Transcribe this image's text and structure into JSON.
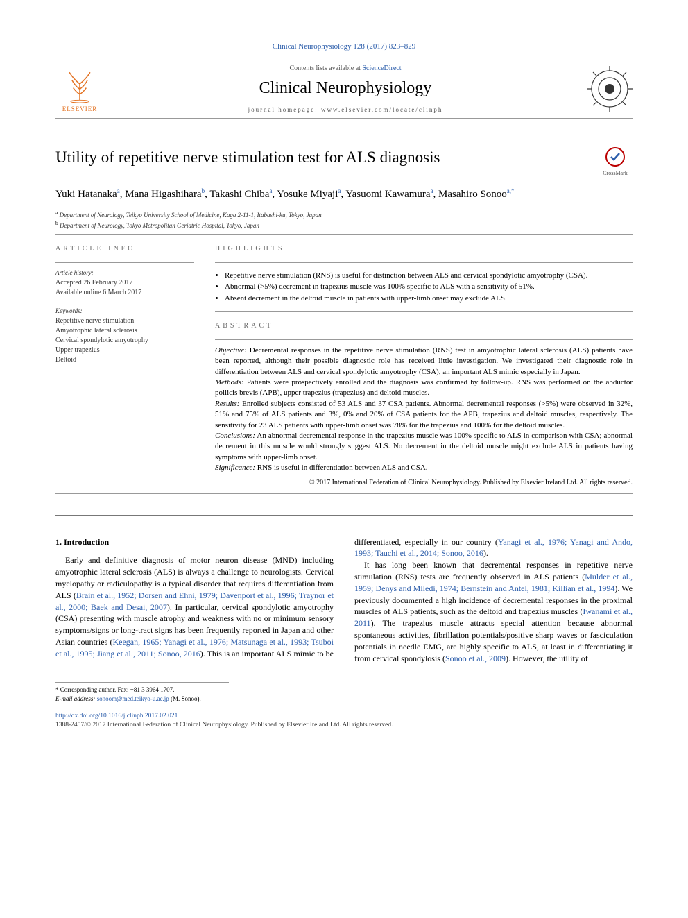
{
  "journal_ref": "Clinical Neurophysiology 128 (2017) 823–829",
  "masthead": {
    "contents_prefix": "Contents lists available at ",
    "contents_link": "ScienceDirect",
    "journal_name": "Clinical Neurophysiology",
    "homepage_prefix": "journal homepage: ",
    "homepage_url": "www.elsevier.com/locate/clinph",
    "publisher_word": "ELSEVIER"
  },
  "title": "Utility of repetitive nerve stimulation test for ALS diagnosis",
  "crossmark_label": "CrossMark",
  "authors_html": "Yuki Hatanaka<sup>a</sup>, Mana Higashihara<sup>b</sup>, Takashi Chiba<sup>a</sup>, Yosuke Miyaji<sup>a</sup>, Yasuomi Kawamura<sup>a</sup>, Masahiro Sonoo<sup>a,</sup>",
  "corr_symbol": "*",
  "affiliations": [
    "Department of Neurology, Teikyo University School of Medicine, Kaga 2-11-1, Itabashi-ku, Tokyo, Japan",
    "Department of Neurology, Tokyo Metropolitan Geriatric Hospital, Tokyo, Japan"
  ],
  "aff_marks": [
    "a",
    "b"
  ],
  "info": {
    "label": "article info",
    "history_label": "Article history:",
    "accepted": "Accepted 26 February 2017",
    "online": "Available online 6 March 2017",
    "keywords_label": "Keywords:",
    "keywords": [
      "Repetitive nerve stimulation",
      "Amyotrophic lateral sclerosis",
      "Cervical spondylotic amyotrophy",
      "Upper trapezius",
      "Deltoid"
    ]
  },
  "highlights": {
    "label": "highlights",
    "items": [
      "Repetitive nerve stimulation (RNS) is useful for distinction between ALS and cervical spondylotic amyotrophy (CSA).",
      "Abnormal (>5%) decrement in trapezius muscle was 100% specific to ALS with a sensitivity of 51%.",
      "Absent decrement in the deltoid muscle in patients with upper-limb onset may exclude ALS."
    ]
  },
  "abstract": {
    "label": "abstract",
    "objective_lbl": "Objective:",
    "objective": " Decremental responses in the repetitive nerve stimulation (RNS) test in amyotrophic lateral sclerosis (ALS) patients have been reported, although their possible diagnostic role has received little investigation. We investigated their diagnostic role in differentiation between ALS and cervical spondylotic amyotrophy (CSA), an important ALS mimic especially in Japan.",
    "methods_lbl": "Methods:",
    "methods": " Patients were prospectively enrolled and the diagnosis was confirmed by follow-up. RNS was performed on the abductor pollicis brevis (APB), upper trapezius (trapezius) and deltoid muscles.",
    "results_lbl": "Results:",
    "results": " Enrolled subjects consisted of 53 ALS and 37 CSA patients. Abnormal decremental responses (>5%) were observed in 32%, 51% and 75% of ALS patients and 3%, 0% and 20% of CSA patients for the APB, trapezius and deltoid muscles, respectively. The sensitivity for 23 ALS patients with upper-limb onset was 78% for the trapezius and 100% for the deltoid muscles.",
    "conclusions_lbl": "Conclusions:",
    "conclusions": " An abnormal decremental response in the trapezius muscle was 100% specific to ALS in comparison with CSA; abnormal decrement in this muscle would strongly suggest ALS. No decrement in the deltoid muscle might exclude ALS in patients having symptoms with upper-limb onset.",
    "significance_lbl": "Significance:",
    "significance": " RNS is useful in differentiation between ALS and CSA.",
    "copyright": "© 2017 International Federation of Clinical Neurophysiology. Published by Elsevier Ireland Ltd. All rights reserved."
  },
  "intro": {
    "heading": "1. Introduction",
    "p1_a": "Early and definitive diagnosis of motor neuron disease (MND) including amyotrophic lateral sclerosis (ALS) is always a challenge to neurologists. Cervical myelopathy or radiculopathy is a typical disorder that requires differentiation from ALS (",
    "p1_ref1": "Brain et al., 1952; Dorsen and Ehni, 1979; Davenport et al., 1996; Traynor et al., 2000; Baek and Desai, 2007",
    "p1_b": "). In particular, cervical spondylotic amyotrophy (CSA) presenting with muscle atrophy and weakness with no or minimum sensory symptoms/signs or long-tract signs has been frequently reported in Japan and other Asian countries (",
    "p1_ref2": "Keegan, 1965; Yanagi et al., 1976; Matsunaga et al., 1993; ",
    "p1_ref2b": "Tsuboi et al., 1995; Jiang et al., 2011; Sonoo, 2016",
    "p1_c": "). This is an important ALS mimic to be differentiated, especially in our country (",
    "p1_ref3": "Yanagi et al., 1976; Yanagi and Ando, 1993; Tauchi et al., 2014; Sonoo, 2016",
    "p1_d": ").",
    "p2_a": "It has long been known that decremental responses in repetitive nerve stimulation (RNS) tests are frequently observed in ALS patients (",
    "p2_ref1": "Mulder et al., 1959; Denys and Miledi, 1974; Bernstein and Antel, 1981; Killian et al., 1994",
    "p2_b": "). We previously documented a high incidence of decremental responses in the proximal muscles of ALS patients, such as the deltoid and trapezius muscles (",
    "p2_ref2": "Iwanami et al., 2011",
    "p2_c": "). The trapezius muscle attracts special attention because abnormal spontaneous activities, fibrillation potentials/positive sharp waves or fasciculation potentials in needle EMG, are highly specific to ALS, at least in differentiating it from cervical spondylosis (",
    "p2_ref3": "Sonoo et al., 2009",
    "p2_d": "). However, the utility of"
  },
  "footnotes": {
    "corr_label": "Corresponding author. Fax: +81 3 3964 1707.",
    "email_label": "E-mail address:",
    "email": "sonoom@med.teikyo-u.ac.jp",
    "email_who": "(M. Sonoo)."
  },
  "doi": {
    "url": "http://dx.doi.org/10.1016/j.clinph.2017.02.021",
    "issn_line": "1388-2457/© 2017 International Federation of Clinical Neurophysiology. Published by Elsevier Ireland Ltd. All rights reserved."
  },
  "colors": {
    "link": "#2a5caa",
    "elsevier_orange": "#e37222",
    "text": "#000000",
    "muted": "#555555",
    "rule": "#999999"
  }
}
